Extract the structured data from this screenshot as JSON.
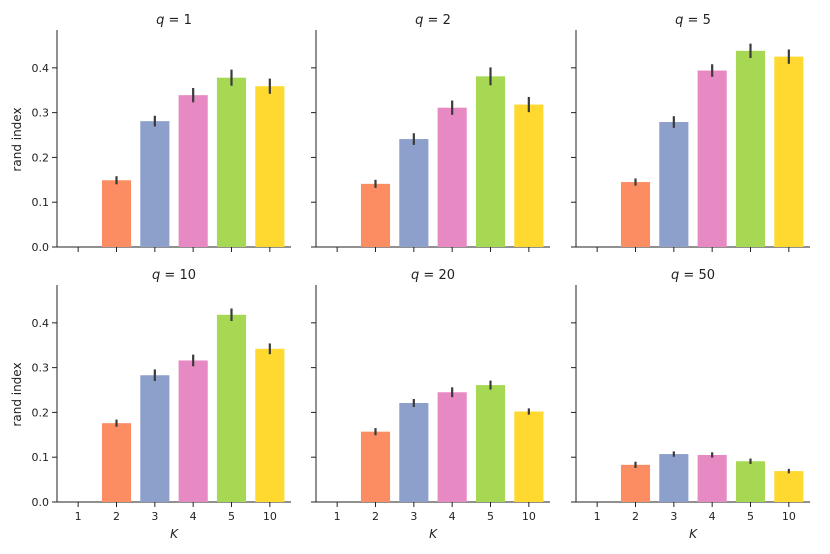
{
  "chart_data": [
    {
      "type": "bar",
      "title_var": "q",
      "title_value": "1",
      "title": "q = 1",
      "categories": [
        "1",
        "2",
        "3",
        "4",
        "5",
        "10"
      ],
      "values": [
        0.0,
        0.149,
        0.281,
        0.339,
        0.378,
        0.359
      ],
      "error": [
        0.0,
        0.009,
        0.012,
        0.016,
        0.018,
        0.017
      ],
      "ylabel": "rand index",
      "xlabel": "",
      "ylim": [
        0,
        0.48
      ],
      "yticks": [
        "0.0",
        "0.1",
        "0.2",
        "0.3",
        "0.4"
      ]
    },
    {
      "type": "bar",
      "title_var": "q",
      "title_value": "2",
      "title": "q = 2",
      "categories": [
        "1",
        "2",
        "3",
        "4",
        "5",
        "10"
      ],
      "values": [
        0.0,
        0.141,
        0.241,
        0.311,
        0.381,
        0.318
      ],
      "error": [
        0.0,
        0.009,
        0.013,
        0.016,
        0.02,
        0.017
      ],
      "ylabel": "",
      "xlabel": "",
      "ylim": [
        0,
        0.48
      ],
      "yticks": []
    },
    {
      "type": "bar",
      "title_var": "q",
      "title_value": "5",
      "title": "q = 5",
      "categories": [
        "1",
        "2",
        "3",
        "4",
        "5",
        "10"
      ],
      "values": [
        0.0,
        0.145,
        0.279,
        0.394,
        0.438,
        0.425
      ],
      "error": [
        0.0,
        0.008,
        0.013,
        0.014,
        0.016,
        0.016
      ],
      "ylabel": "",
      "xlabel": "",
      "ylim": [
        0,
        0.48
      ],
      "yticks": []
    },
    {
      "type": "bar",
      "title_var": "q",
      "title_value": "10",
      "title": "q = 10",
      "categories": [
        "1",
        "2",
        "3",
        "4",
        "5",
        "10"
      ],
      "values": [
        0.0,
        0.176,
        0.283,
        0.316,
        0.418,
        0.342
      ],
      "error": [
        0.0,
        0.008,
        0.013,
        0.013,
        0.014,
        0.012
      ],
      "ylabel": "rand index",
      "xlabel": "K",
      "ylim": [
        0,
        0.48
      ],
      "yticks": [
        "0.0",
        "0.1",
        "0.2",
        "0.3",
        "0.4"
      ]
    },
    {
      "type": "bar",
      "title_var": "q",
      "title_value": "20",
      "title": "q = 20",
      "categories": [
        "1",
        "2",
        "3",
        "4",
        "5",
        "10"
      ],
      "values": [
        0.0,
        0.157,
        0.221,
        0.245,
        0.261,
        0.202
      ],
      "error": [
        0.0,
        0.008,
        0.009,
        0.011,
        0.01,
        0.007
      ],
      "ylabel": "",
      "xlabel": "K",
      "ylim": [
        0,
        0.48
      ],
      "yticks": []
    },
    {
      "type": "bar",
      "title_var": "q",
      "title_value": "50",
      "title": "q = 50",
      "categories": [
        "1",
        "2",
        "3",
        "4",
        "5",
        "10"
      ],
      "values": [
        0.0,
        0.083,
        0.107,
        0.105,
        0.091,
        0.069
      ],
      "error": [
        0.0,
        0.007,
        0.006,
        0.006,
        0.006,
        0.005
      ],
      "ylabel": "",
      "xlabel": "K",
      "ylim": [
        0,
        0.48
      ],
      "yticks": []
    }
  ],
  "colors": {
    "bars": [
      "#fc8d62",
      "#fc8d62",
      "#8da0cb",
      "#e78ac3",
      "#a6d854",
      "#ffd92f"
    ],
    "axis": "#222222",
    "errorbar": "#3b3b3b"
  }
}
